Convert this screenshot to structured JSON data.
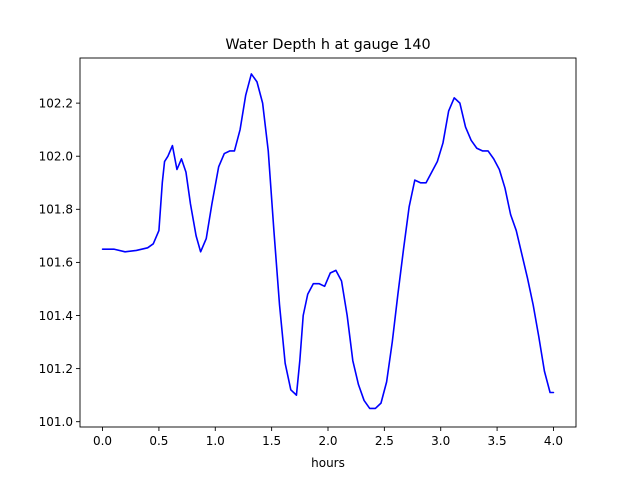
{
  "chart_data": {
    "type": "line",
    "title": "Water Depth h at gauge 140",
    "xlabel": "hours",
    "ylabel": "",
    "xlim": [
      -0.2,
      4.2
    ],
    "ylim": [
      100.98,
      102.37
    ],
    "xticks": [
      0.0,
      0.5,
      1.0,
      1.5,
      2.0,
      2.5,
      3.0,
      3.5,
      4.0
    ],
    "xtick_labels": [
      "0.0",
      "0.5",
      "1.0",
      "1.5",
      "2.0",
      "2.5",
      "3.0",
      "3.5",
      "4.0"
    ],
    "yticks": [
      101.0,
      101.2,
      101.4,
      101.6,
      101.8,
      102.0,
      102.2
    ],
    "ytick_labels": [
      "101.0",
      "101.2",
      "101.4",
      "101.6",
      "101.8",
      "102.0",
      "102.2"
    ],
    "grid": false,
    "series": [
      {
        "color": "#0000ff",
        "x": [
          0.0,
          0.1,
          0.2,
          0.3,
          0.4,
          0.45,
          0.5,
          0.53,
          0.55,
          0.58,
          0.62,
          0.66,
          0.7,
          0.74,
          0.78,
          0.83,
          0.87,
          0.92,
          0.97,
          1.03,
          1.08,
          1.13,
          1.17,
          1.22,
          1.27,
          1.32,
          1.37,
          1.42,
          1.47,
          1.52,
          1.57,
          1.62,
          1.67,
          1.72,
          1.75,
          1.78,
          1.82,
          1.87,
          1.92,
          1.97,
          2.02,
          2.07,
          2.12,
          2.17,
          2.22,
          2.27,
          2.32,
          2.37,
          2.42,
          2.47,
          2.52,
          2.57,
          2.62,
          2.67,
          2.72,
          2.77,
          2.82,
          2.87,
          2.92,
          2.97,
          3.02,
          3.07,
          3.12,
          3.17,
          3.22,
          3.27,
          3.32,
          3.37,
          3.42,
          3.47,
          3.52,
          3.57,
          3.62,
          3.67,
          3.72,
          3.77,
          3.82,
          3.87,
          3.92,
          3.97,
          4.0
        ],
        "y": [
          101.65,
          101.65,
          101.64,
          101.645,
          101.655,
          101.67,
          101.72,
          101.9,
          101.98,
          102.0,
          102.04,
          101.95,
          101.99,
          101.94,
          101.82,
          101.7,
          101.64,
          101.69,
          101.82,
          101.96,
          102.01,
          102.02,
          102.02,
          102.1,
          102.23,
          102.31,
          102.28,
          102.2,
          102.02,
          101.72,
          101.44,
          101.22,
          101.12,
          101.1,
          101.23,
          101.4,
          101.48,
          101.52,
          101.52,
          101.51,
          101.56,
          101.57,
          101.53,
          101.4,
          101.23,
          101.14,
          101.08,
          101.05,
          101.05,
          101.07,
          101.15,
          101.3,
          101.48,
          101.65,
          101.81,
          101.91,
          101.9,
          101.9,
          101.94,
          101.98,
          102.05,
          102.17,
          102.22,
          102.2,
          102.11,
          102.06,
          102.03,
          102.02,
          102.02,
          101.99,
          101.95,
          101.88,
          101.78,
          101.72,
          101.63,
          101.54,
          101.44,
          101.32,
          101.19,
          101.11,
          101.11
        ]
      }
    ]
  }
}
